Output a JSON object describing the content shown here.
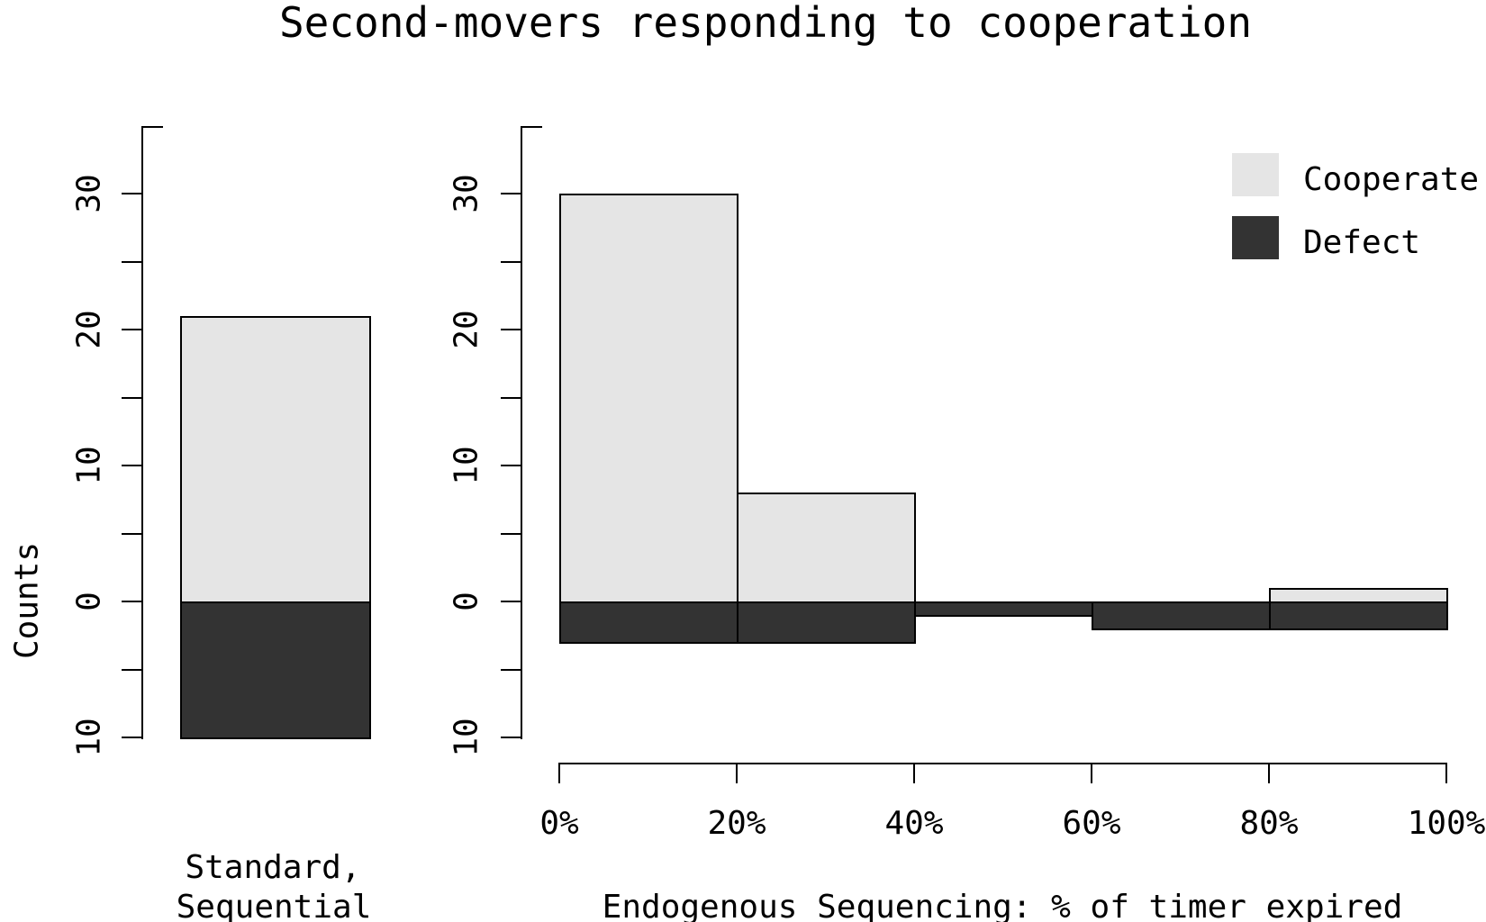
{
  "title": "Second-movers responding to cooperation",
  "colors": {
    "cooperate": "#e5e5e5",
    "defect": "#333333",
    "axis": "#000000"
  },
  "legend": {
    "position": "top-right",
    "items": [
      {
        "label": "Cooperate",
        "color_key": "cooperate"
      },
      {
        "label": "Defect",
        "color_key": "defect"
      }
    ]
  },
  "y_axis": {
    "label": "Counts",
    "range": [
      -10,
      35
    ],
    "tick_step": 5,
    "tick_values": [
      -10,
      -5,
      0,
      5,
      10,
      15,
      20,
      25,
      30
    ],
    "labeled_ticks": [
      {
        "value": -10,
        "label": "10"
      },
      {
        "value": 0,
        "label": "0"
      },
      {
        "value": 10,
        "label": "10"
      },
      {
        "value": 20,
        "label": "20"
      },
      {
        "value": 30,
        "label": "30"
      }
    ]
  },
  "chart_data": [
    {
      "type": "bar",
      "panel": "left",
      "title": "",
      "categories": [
        "Standard, Sequential"
      ],
      "xlabel_lines": [
        "Standard,",
        "Sequential"
      ],
      "ylabel": "Counts",
      "ylim": [
        -10,
        35
      ],
      "grid": false,
      "series": [
        {
          "name": "Cooperate",
          "direction": "up",
          "values": [
            21
          ]
        },
        {
          "name": "Defect",
          "direction": "down",
          "values": [
            10
          ]
        }
      ]
    },
    {
      "type": "bar",
      "panel": "right",
      "title": "",
      "xlabel": "Endogenous Sequencing: % of timer expired",
      "bin_edges_percent": [
        0,
        20,
        40,
        60,
        80,
        100
      ],
      "x_tick_labels": [
        "0%",
        "20%",
        "40%",
        "60%",
        "80%",
        "100%"
      ],
      "categories": [
        "0-20%",
        "20-40%",
        "40-60%",
        "60-80%",
        "80-100%"
      ],
      "ylim": [
        -10,
        35
      ],
      "grid": false,
      "series": [
        {
          "name": "Cooperate",
          "direction": "up",
          "values": [
            30,
            8,
            0,
            0,
            1
          ]
        },
        {
          "name": "Defect",
          "direction": "down",
          "values": [
            3,
            3,
            1,
            2,
            2
          ]
        }
      ]
    }
  ]
}
